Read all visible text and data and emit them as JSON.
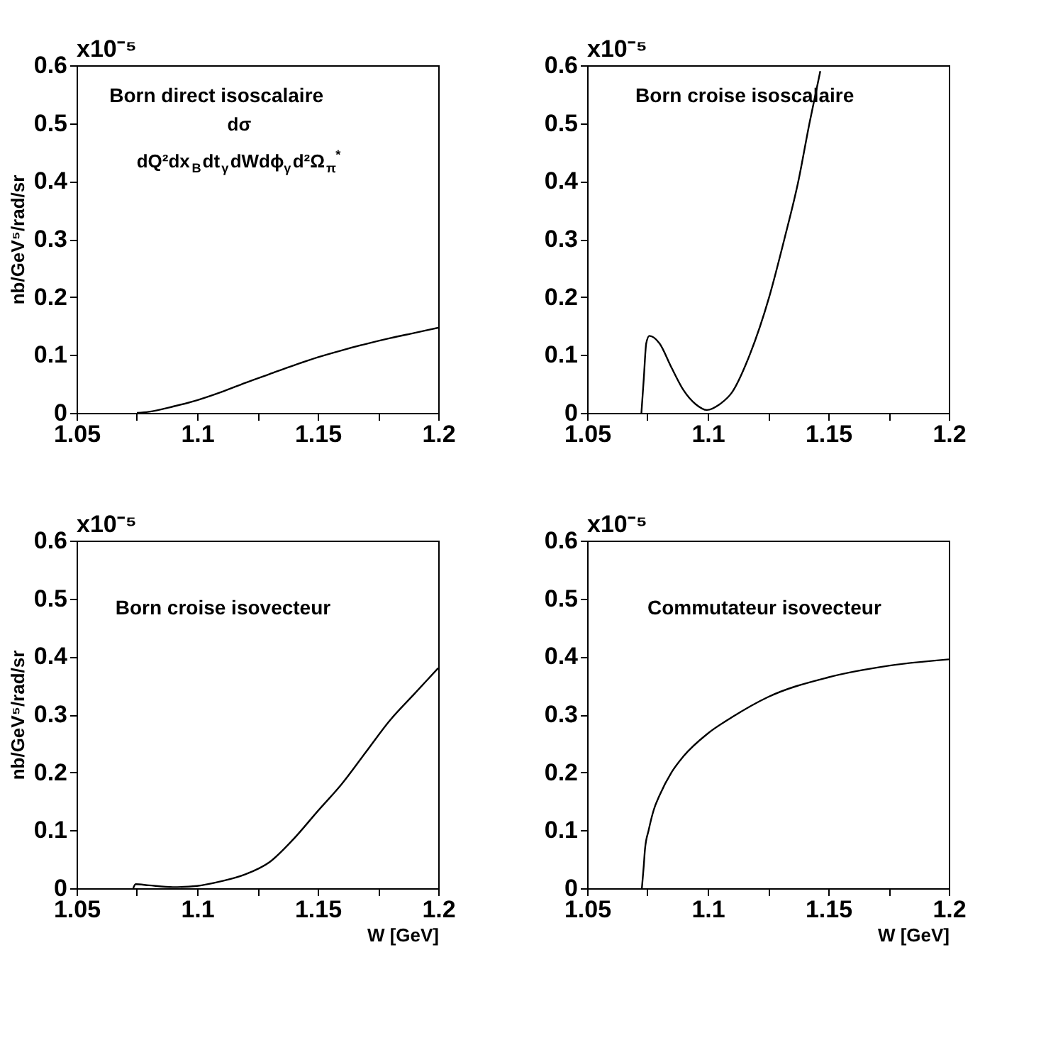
{
  "chart_data": [
    {
      "type": "line",
      "ylabel": "nb/GeV⁵/rad/sr",
      "annotations": [
        "x10⁻⁵",
        "Born direct isoscalaire",
        "dσ",
        "dQ²dx$_{B}$dt$_{γ}$dWdϕ$_{γ}$d²Ω$_{π}$$^{*}$"
      ],
      "x": [
        1.075,
        1.08,
        1.09,
        1.1,
        1.11,
        1.12,
        1.13,
        1.14,
        1.15,
        1.16,
        1.17,
        1.18,
        1.19,
        1.2
      ],
      "series": [
        {
          "color": "#000000",
          "values": [
            0,
            0.002,
            0.011,
            0.022,
            0.036,
            0.052,
            0.067,
            0.082,
            0.096,
            0.108,
            0.119,
            0.129,
            0.138,
            0.147
          ]
        }
      ],
      "xlim": [
        1.05,
        1.2
      ],
      "ylim": [
        0,
        0.6
      ],
      "xticks": [
        1.05,
        {
          "value": 1.075,
          "label": null
        },
        1.1,
        {
          "value": 1.125,
          "label": null
        },
        1.15,
        {
          "value": 1.175,
          "label": null
        },
        1.2
      ],
      "yticks": [
        0,
        0.1,
        0.2,
        0.3,
        0.4,
        0.5,
        0.6
      ],
      "grid": false
    },
    {
      "type": "line",
      "annotations": [
        "x10⁻⁵",
        "Born croise isoscalaire"
      ],
      "x": [
        1.0725,
        1.0735,
        1.0745,
        1.0758,
        1.08,
        1.085,
        1.09,
        1.095,
        1.0997,
        1.105,
        1.11,
        1.1174,
        1.1255,
        1.1318,
        1.1376,
        1.1422,
        1.1467
      ],
      "series": [
        {
          "color": "#000000",
          "values": [
            0,
            0.06,
            0.12,
            0.133,
            0.12,
            0.078,
            0.039,
            0.015,
            0.005,
            0.015,
            0.035,
            0.1,
            0.2,
            0.3,
            0.4,
            0.5,
            0.59
          ]
        }
      ],
      "xlim": [
        1.05,
        1.2
      ],
      "ylim": [
        0,
        0.6
      ],
      "xticks": [
        1.05,
        {
          "value": 1.075,
          "label": null
        },
        1.1,
        {
          "value": 1.125,
          "label": null
        },
        1.15,
        {
          "value": 1.175,
          "label": null
        },
        1.2
      ],
      "yticks": [
        0,
        0.1,
        0.2,
        0.3,
        0.4,
        0.5,
        0.6
      ],
      "grid": false
    },
    {
      "type": "line",
      "ylabel": "nb/GeV⁵/rad/sr",
      "xlabel": "W [GeV]",
      "annotations": [
        "x10⁻⁵",
        "Born croise isovecteur"
      ],
      "x": [
        1.0735,
        1.0745,
        1.08,
        1.09,
        1.1,
        1.11,
        1.12,
        1.13,
        1.14,
        1.15,
        1.16,
        1.17,
        1.18,
        1.19,
        1.2
      ],
      "series": [
        {
          "color": "#000000",
          "values": [
            0,
            0.007,
            0.005,
            0.002,
            0.004,
            0.012,
            0.024,
            0.045,
            0.085,
            0.133,
            0.18,
            0.235,
            0.29,
            0.335,
            0.38
          ]
        }
      ],
      "xlim": [
        1.05,
        1.2
      ],
      "ylim": [
        0,
        0.6
      ],
      "xticks": [
        1.05,
        {
          "value": 1.075,
          "label": null
        },
        1.1,
        {
          "value": 1.125,
          "label": null
        },
        1.15,
        {
          "value": 1.175,
          "label": null
        },
        1.2
      ],
      "yticks": [
        0,
        0.1,
        0.2,
        0.3,
        0.4,
        0.5,
        0.6
      ],
      "grid": false
    },
    {
      "type": "line",
      "xlabel": "W [GeV]",
      "annotations": [
        "x10⁻⁵",
        "Commutateur isovecteur"
      ],
      "x": [
        1.0727,
        1.0735,
        1.074,
        1.0755,
        1.0776,
        1.08,
        1.085,
        1.09,
        1.1,
        1.11,
        1.125,
        1.15,
        1.175,
        1.2
      ],
      "series": [
        {
          "color": "#000000",
          "values": [
            0,
            0.04,
            0.068,
            0.1,
            0.135,
            0.16,
            0.2,
            0.228,
            0.267,
            0.295,
            0.33,
            0.364,
            0.384,
            0.395
          ]
        }
      ],
      "xlim": [
        1.05,
        1.2
      ],
      "ylim": [
        0,
        0.6
      ],
      "xticks": [
        1.05,
        {
          "value": 1.075,
          "label": null
        },
        1.1,
        {
          "value": 1.125,
          "label": null
        },
        1.15,
        {
          "value": 1.175,
          "label": null
        },
        1.2
      ],
      "yticks": [
        0,
        0.1,
        0.2,
        0.3,
        0.4,
        0.5,
        0.6
      ],
      "grid": false
    }
  ]
}
